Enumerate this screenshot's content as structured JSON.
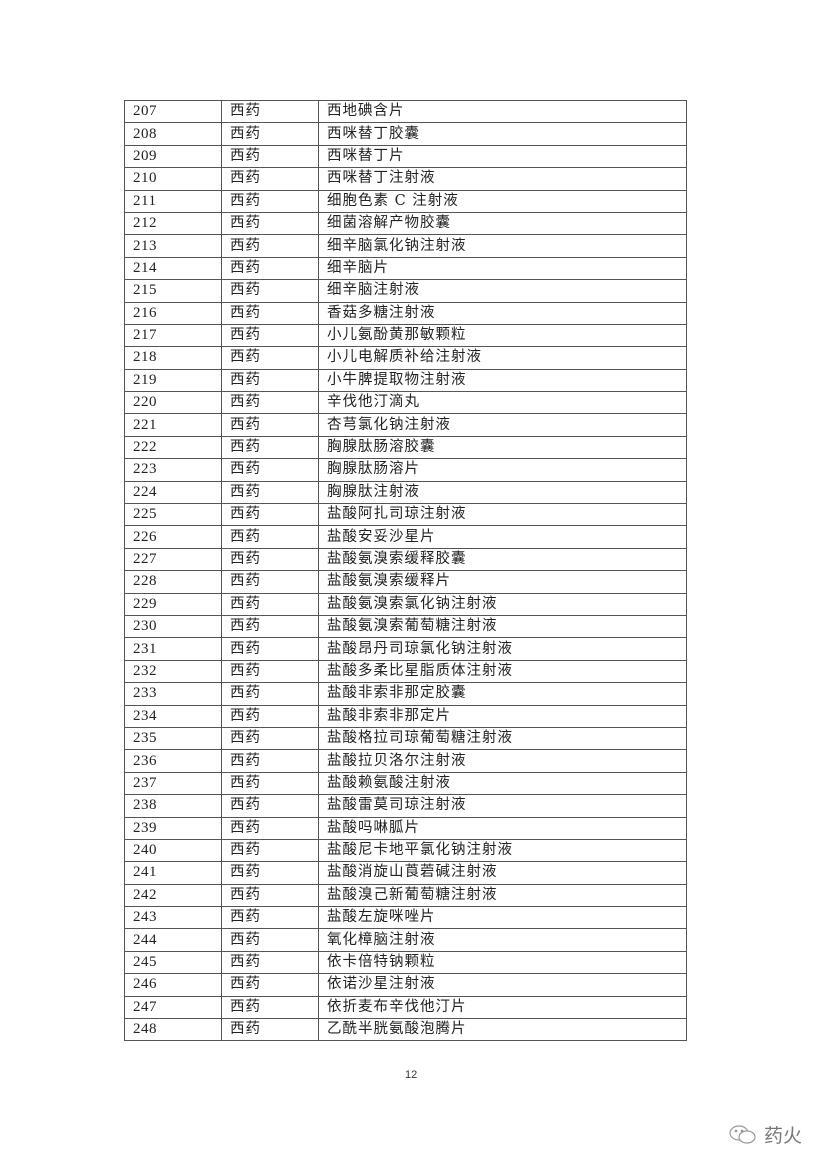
{
  "table": {
    "rows": [
      [
        "207",
        "西药",
        "西地碘含片"
      ],
      [
        "208",
        "西药",
        "西咪替丁胶囊"
      ],
      [
        "209",
        "西药",
        "西咪替丁片"
      ],
      [
        "210",
        "西药",
        "西咪替丁注射液"
      ],
      [
        "211",
        "西药",
        "细胞色素 C 注射液"
      ],
      [
        "212",
        "西药",
        "细菌溶解产物胶囊"
      ],
      [
        "213",
        "西药",
        "细辛脑氯化钠注射液"
      ],
      [
        "214",
        "西药",
        "细辛脑片"
      ],
      [
        "215",
        "西药",
        "细辛脑注射液"
      ],
      [
        "216",
        "西药",
        "香菇多糖注射液"
      ],
      [
        "217",
        "西药",
        "小儿氨酚黄那敏颗粒"
      ],
      [
        "218",
        "西药",
        "小儿电解质补给注射液"
      ],
      [
        "219",
        "西药",
        "小牛脾提取物注射液"
      ],
      [
        "220",
        "西药",
        "辛伐他汀滴丸"
      ],
      [
        "221",
        "西药",
        "杏芎氯化钠注射液"
      ],
      [
        "222",
        "西药",
        "胸腺肽肠溶胶囊"
      ],
      [
        "223",
        "西药",
        "胸腺肽肠溶片"
      ],
      [
        "224",
        "西药",
        "胸腺肽注射液"
      ],
      [
        "225",
        "西药",
        "盐酸阿扎司琼注射液"
      ],
      [
        "226",
        "西药",
        "盐酸安妥沙星片"
      ],
      [
        "227",
        "西药",
        "盐酸氨溴索缓释胶囊"
      ],
      [
        "228",
        "西药",
        "盐酸氨溴索缓释片"
      ],
      [
        "229",
        "西药",
        "盐酸氨溴索氯化钠注射液"
      ],
      [
        "230",
        "西药",
        "盐酸氨溴索葡萄糖注射液"
      ],
      [
        "231",
        "西药",
        "盐酸昂丹司琼氯化钠注射液"
      ],
      [
        "232",
        "西药",
        "盐酸多柔比星脂质体注射液"
      ],
      [
        "233",
        "西药",
        "盐酸非索非那定胶囊"
      ],
      [
        "234",
        "西药",
        "盐酸非索非那定片"
      ],
      [
        "235",
        "西药",
        "盐酸格拉司琼葡萄糖注射液"
      ],
      [
        "236",
        "西药",
        "盐酸拉贝洛尔注射液"
      ],
      [
        "237",
        "西药",
        "盐酸赖氨酸注射液"
      ],
      [
        "238",
        "西药",
        "盐酸雷莫司琼注射液"
      ],
      [
        "239",
        "西药",
        "盐酸吗啉胍片"
      ],
      [
        "240",
        "西药",
        "盐酸尼卡地平氯化钠注射液"
      ],
      [
        "241",
        "西药",
        "盐酸消旋山莨菪碱注射液"
      ],
      [
        "242",
        "西药",
        "盐酸溴己新葡萄糖注射液"
      ],
      [
        "243",
        "西药",
        "盐酸左旋咪唑片"
      ],
      [
        "244",
        "西药",
        "氧化樟脑注射液"
      ],
      [
        "245",
        "西药",
        "依卡倍特钠颗粒"
      ],
      [
        "246",
        "西药",
        "依诺沙星注射液"
      ],
      [
        "247",
        "西药",
        "依折麦布辛伐他汀片"
      ],
      [
        "248",
        "西药",
        "乙酰半胱氨酸泡腾片"
      ]
    ]
  },
  "footer": {
    "page_number": "12",
    "watermark": {
      "icon": "wechat-icon",
      "text": "药火"
    }
  }
}
